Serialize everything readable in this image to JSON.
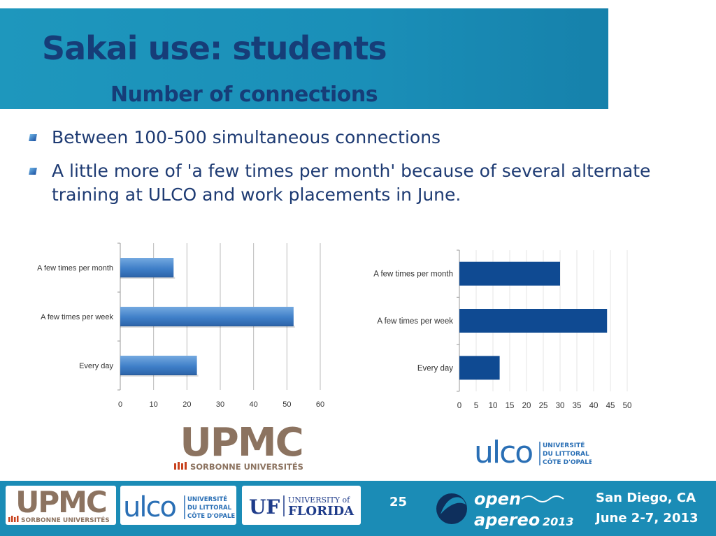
{
  "slide": {
    "title": "Sakai use: students",
    "subtitle": "Number of connections",
    "bullets": [
      "Between 100-500 simultaneous connections",
      "A little more of  'a few times per month' because of several alternate training at ULCO and work placements in June."
    ]
  },
  "chart_data": [
    {
      "type": "bar",
      "orientation": "horizontal",
      "categories": [
        "Every day",
        "A few times per week",
        "A few times per month"
      ],
      "values": [
        23,
        52,
        16
      ],
      "xlim": [
        0,
        60
      ],
      "xticks": [
        "0",
        "10",
        "20",
        "30",
        "40",
        "50",
        "60"
      ],
      "grid": true,
      "color": "#3f7fc8"
    },
    {
      "type": "bar",
      "orientation": "horizontal",
      "categories": [
        "Every day",
        "A few times per week",
        "A few times per month"
      ],
      "values": [
        12,
        44,
        30
      ],
      "xlim": [
        0,
        50
      ],
      "xticks": [
        "0",
        "5",
        "10",
        "15",
        "20",
        "25",
        "30",
        "35",
        "40",
        "45",
        "50"
      ],
      "grid": true,
      "color": "#0f4a92"
    }
  ],
  "logos": {
    "upmc_main": "UPMC",
    "upmc_sub": "SORBONNE UNIVERSITÉS",
    "ulco_main": "ulco",
    "ulco_lines": [
      "UNIVERSITÉ",
      "DU LITTORAL",
      "CÔTE D'OPALE"
    ],
    "uf_mark": "UF",
    "uf_top": "UNIVERSITY of",
    "uf_bottom": "FLORIDA",
    "apereo_open": "open",
    "apereo_name": "apereo",
    "apereo_year": "2013"
  },
  "footer": {
    "page_number": "25",
    "event_city": "San Diego, CA",
    "event_dates": "June 2-7, 2013"
  },
  "colors": {
    "title_band": "#1a8fb8",
    "title_text": "#163d78",
    "bullet_text": "#1e3b73",
    "upmc_brown": "#8c7360",
    "upmc_red": "#c8421e",
    "ulco_blue": "#2a6fb5",
    "footer_band": "#1b8cb6"
  }
}
